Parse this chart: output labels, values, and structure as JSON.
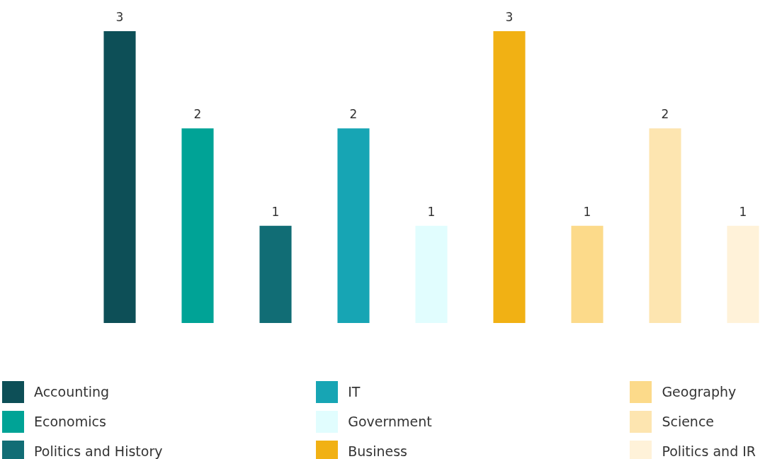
{
  "chart_data": {
    "type": "bar",
    "categories": [
      null,
      null,
      null,
      null,
      null,
      null,
      null,
      null,
      null
    ],
    "data_labels": true,
    "stacked": true,
    "legend": "bottom",
    "series": [
      {
        "name": "Accounting",
        "color": "#0d4f57",
        "values": [
          3,
          null,
          null,
          null,
          null,
          null,
          null,
          null,
          null
        ]
      },
      {
        "name": "Economics",
        "color": "#00a396",
        "values": [
          null,
          2,
          null,
          null,
          null,
          null,
          null,
          null,
          null
        ]
      },
      {
        "name": "Politics and History",
        "color": "#116d75",
        "values": [
          null,
          null,
          1,
          null,
          null,
          null,
          null,
          null,
          null
        ]
      },
      {
        "name": "IT",
        "color": "#17a5b4",
        "values": [
          null,
          null,
          null,
          2,
          null,
          null,
          null,
          null,
          null
        ]
      },
      {
        "name": "Government",
        "color": "#e1fdfe",
        "values": [
          null,
          null,
          null,
          null,
          1,
          null,
          null,
          null,
          null
        ]
      },
      {
        "name": "Business",
        "color": "#f1b114",
        "values": [
          null,
          null,
          null,
          null,
          null,
          3,
          null,
          null,
          null
        ]
      },
      {
        "name": "Geography",
        "color": "#fcda8a",
        "values": [
          null,
          null,
          null,
          null,
          null,
          null,
          1,
          null,
          null
        ]
      },
      {
        "name": "Science",
        "color": "#fde5b0",
        "values": [
          null,
          null,
          null,
          null,
          null,
          null,
          null,
          2,
          null
        ]
      },
      {
        "name": "Politics and IR",
        "color": "#fff2d9",
        "values": [
          null,
          null,
          null,
          null,
          null,
          null,
          null,
          null,
          1
        ]
      }
    ]
  }
}
